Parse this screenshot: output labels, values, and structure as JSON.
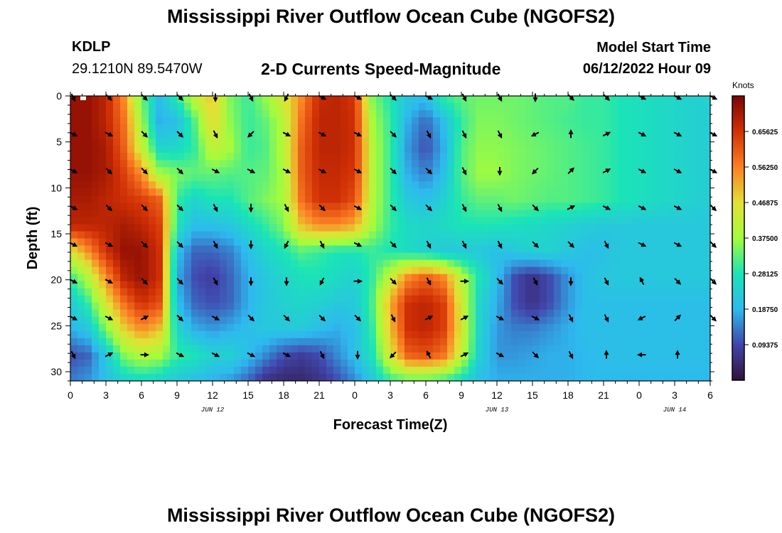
{
  "header": {
    "title": "Mississippi River Outflow Ocean Cube (NGOFS2)",
    "station": "KDLP",
    "coords": "29.1210N  89.5470W",
    "subtitle": "2-D Currents Speed-Magnitude",
    "model_start_label": "Model Start Time",
    "model_start_value": "06/12/2022 Hour 09"
  },
  "footer": {
    "title": "Mississippi River Outflow Ocean Cube (NGOFS2)"
  },
  "chart_data": {
    "type": "heatmap",
    "xlabel": "Forecast Time(Z)",
    "ylabel": "Depth (ft)",
    "x_tick_labels": [
      "0",
      "3",
      "6",
      "9",
      "12",
      "15",
      "18",
      "21",
      "0",
      "3",
      "6",
      "9",
      "12",
      "15",
      "18",
      "21",
      "0",
      "3",
      "6"
    ],
    "x_hours": [
      0,
      3,
      6,
      9,
      12,
      15,
      18,
      21,
      24,
      27,
      30,
      33,
      36,
      39,
      42,
      45,
      48,
      51,
      54
    ],
    "xlim": [
      0,
      54
    ],
    "date_labels": [
      {
        "text": "JUN 12",
        "hour": 12
      },
      {
        "text": "JUN 13",
        "hour": 36
      },
      {
        "text": "JUN 14",
        "hour": 51
      }
    ],
    "y_tick_labels": [
      "0",
      "5",
      "10",
      "15",
      "20",
      "25",
      "30"
    ],
    "y_ticks": [
      0,
      5,
      10,
      15,
      20,
      25,
      30
    ],
    "ylim": [
      0,
      31
    ],
    "colorbar": {
      "units": "Knots",
      "labels": [
        "0.65625",
        "0.56250",
        "0.46875",
        "0.37500",
        "0.28125",
        "0.18750",
        "0.09375"
      ],
      "range": [
        0,
        0.75
      ]
    },
    "arrow_depths": [
      0,
      4,
      8,
      12,
      16,
      20,
      24,
      28
    ],
    "speed_grid": [
      [
        0.72,
        0.72,
        0.68,
        0.55,
        0.34,
        0.2,
        0.3,
        0.42,
        0.5,
        0.35,
        0.3,
        0.37,
        0.45,
        0.55,
        0.67,
        0.68,
        0.65,
        0.35,
        0.28,
        0.22,
        0.2,
        0.3,
        0.33,
        0.34,
        0.34,
        0.34,
        0.33,
        0.32,
        0.32,
        0.3,
        0.3,
        0.28,
        0.27,
        0.26,
        0.25,
        0.24,
        0.24
      ],
      [
        0.72,
        0.72,
        0.68,
        0.58,
        0.38,
        0.18,
        0.2,
        0.32,
        0.48,
        0.36,
        0.3,
        0.33,
        0.4,
        0.58,
        0.68,
        0.68,
        0.66,
        0.38,
        0.3,
        0.18,
        0.12,
        0.2,
        0.3,
        0.35,
        0.35,
        0.34,
        0.33,
        0.32,
        0.31,
        0.3,
        0.3,
        0.28,
        0.27,
        0.26,
        0.25,
        0.24,
        0.23
      ],
      [
        0.72,
        0.72,
        0.7,
        0.6,
        0.42,
        0.25,
        0.25,
        0.3,
        0.42,
        0.38,
        0.3,
        0.32,
        0.4,
        0.6,
        0.68,
        0.68,
        0.66,
        0.4,
        0.3,
        0.16,
        0.1,
        0.18,
        0.32,
        0.36,
        0.36,
        0.35,
        0.34,
        0.33,
        0.32,
        0.31,
        0.3,
        0.28,
        0.27,
        0.26,
        0.25,
        0.24,
        0.23
      ],
      [
        0.72,
        0.72,
        0.7,
        0.64,
        0.55,
        0.38,
        0.35,
        0.33,
        0.33,
        0.32,
        0.32,
        0.33,
        0.38,
        0.6,
        0.67,
        0.67,
        0.65,
        0.4,
        0.3,
        0.18,
        0.14,
        0.2,
        0.32,
        0.37,
        0.37,
        0.35,
        0.34,
        0.33,
        0.32,
        0.31,
        0.3,
        0.28,
        0.27,
        0.26,
        0.25,
        0.24,
        0.23
      ],
      [
        0.7,
        0.7,
        0.68,
        0.66,
        0.64,
        0.6,
        0.3,
        0.25,
        0.28,
        0.28,
        0.32,
        0.35,
        0.38,
        0.58,
        0.66,
        0.66,
        0.62,
        0.4,
        0.3,
        0.22,
        0.2,
        0.24,
        0.3,
        0.33,
        0.33,
        0.34,
        0.33,
        0.32,
        0.32,
        0.31,
        0.3,
        0.28,
        0.27,
        0.26,
        0.25,
        0.24,
        0.23
      ],
      [
        0.68,
        0.68,
        0.68,
        0.7,
        0.68,
        0.64,
        0.28,
        0.2,
        0.2,
        0.22,
        0.26,
        0.3,
        0.35,
        0.5,
        0.55,
        0.55,
        0.52,
        0.38,
        0.3,
        0.26,
        0.25,
        0.26,
        0.28,
        0.28,
        0.28,
        0.27,
        0.26,
        0.25,
        0.24,
        0.23,
        0.22,
        0.22,
        0.22,
        0.22,
        0.22,
        0.22,
        0.22
      ],
      [
        0.45,
        0.55,
        0.66,
        0.72,
        0.72,
        0.66,
        0.2,
        0.12,
        0.12,
        0.14,
        0.2,
        0.25,
        0.28,
        0.32,
        0.3,
        0.28,
        0.28,
        0.3,
        0.28,
        0.26,
        0.24,
        0.22,
        0.22,
        0.22,
        0.2,
        0.22,
        0.24,
        0.24,
        0.22,
        0.2,
        0.2,
        0.22,
        0.22,
        0.22,
        0.22,
        0.22,
        0.22
      ],
      [
        0.3,
        0.4,
        0.55,
        0.68,
        0.72,
        0.66,
        0.18,
        0.1,
        0.08,
        0.12,
        0.18,
        0.22,
        0.25,
        0.27,
        0.28,
        0.26,
        0.24,
        0.3,
        0.42,
        0.55,
        0.6,
        0.55,
        0.4,
        0.28,
        0.2,
        0.1,
        0.06,
        0.1,
        0.16,
        0.2,
        0.22,
        0.22,
        0.22,
        0.22,
        0.22,
        0.22,
        0.22
      ],
      [
        0.22,
        0.3,
        0.45,
        0.58,
        0.66,
        0.62,
        0.2,
        0.12,
        0.1,
        0.12,
        0.18,
        0.22,
        0.24,
        0.25,
        0.24,
        0.22,
        0.22,
        0.32,
        0.52,
        0.66,
        0.68,
        0.64,
        0.44,
        0.25,
        0.18,
        0.1,
        0.06,
        0.1,
        0.16,
        0.2,
        0.2,
        0.2,
        0.2,
        0.2,
        0.2,
        0.2,
        0.2
      ],
      [
        0.18,
        0.22,
        0.35,
        0.48,
        0.55,
        0.5,
        0.25,
        0.18,
        0.16,
        0.18,
        0.2,
        0.22,
        0.22,
        0.22,
        0.2,
        0.18,
        0.2,
        0.3,
        0.5,
        0.66,
        0.68,
        0.64,
        0.45,
        0.25,
        0.16,
        0.14,
        0.14,
        0.16,
        0.18,
        0.2,
        0.2,
        0.2,
        0.2,
        0.2,
        0.2,
        0.2,
        0.2
      ],
      [
        0.1,
        0.12,
        0.22,
        0.35,
        0.4,
        0.38,
        0.3,
        0.28,
        0.24,
        0.24,
        0.2,
        0.15,
        0.1,
        0.08,
        0.1,
        0.15,
        0.2,
        0.28,
        0.45,
        0.6,
        0.62,
        0.58,
        0.42,
        0.24,
        0.16,
        0.16,
        0.17,
        0.18,
        0.18,
        0.19,
        0.2,
        0.2,
        0.2,
        0.2,
        0.2,
        0.2,
        0.2
      ],
      [
        0.14,
        0.16,
        0.2,
        0.24,
        0.26,
        0.24,
        0.22,
        0.2,
        0.18,
        0.16,
        0.12,
        0.06,
        0.04,
        0.04,
        0.06,
        0.1,
        0.15,
        0.22,
        0.3,
        0.32,
        0.32,
        0.3,
        0.26,
        0.2,
        0.18,
        0.18,
        0.18,
        0.18,
        0.18,
        0.19,
        0.19,
        0.19,
        0.19,
        0.19,
        0.19,
        0.19,
        0.19
      ]
    ],
    "arrows": [
      [
        [
          0.45,
          0.89
        ],
        [
          0.71,
          0.71
        ],
        [
          0.71,
          0.71
        ],
        [
          0.71,
          0.71
        ],
        [
          0,
          1
        ],
        [
          0.45,
          0.89
        ],
        [
          -0.45,
          0.89
        ],
        [
          0.89,
          0.45
        ],
        [
          0.89,
          0.45
        ],
        [
          0.71,
          0.71
        ],
        [
          0.89,
          0.45
        ],
        [
          0.45,
          0.89
        ],
        [
          0.45,
          0.89
        ],
        [
          0,
          1
        ],
        [
          0.71,
          0.71
        ],
        [
          0.71,
          0.71
        ],
        [
          0.89,
          0.45
        ],
        [
          0.89,
          0.45
        ],
        [
          0.89,
          0.45
        ]
      ],
      [
        [
          0.89,
          0.45
        ],
        [
          0.89,
          0.45
        ],
        [
          0.71,
          0.71
        ],
        [
          0.71,
          0.71
        ],
        [
          0.45,
          0.89
        ],
        [
          -0.71,
          0.71
        ],
        [
          0.89,
          0.45
        ],
        [
          0.89,
          0.45
        ],
        [
          0.89,
          0.45
        ],
        [
          0.71,
          0.71
        ],
        [
          0.45,
          0.89
        ],
        [
          0.45,
          0.89
        ],
        [
          0.45,
          0.89
        ],
        [
          -0.89,
          0.45
        ],
        [
          0,
          -1
        ],
        [
          0.89,
          -0.45
        ],
        [
          0.89,
          0.45
        ],
        [
          0.89,
          0.45
        ],
        [
          0.89,
          0.45
        ]
      ],
      [
        [
          0.89,
          0.45
        ],
        [
          0.71,
          0.71
        ],
        [
          0.71,
          0.71
        ],
        [
          0.71,
          0.71
        ],
        [
          0.89,
          0.45
        ],
        [
          0.89,
          0.45
        ],
        [
          0.89,
          0.45
        ],
        [
          0.89,
          0.45
        ],
        [
          0.89,
          0.45
        ],
        [
          0.71,
          0.71
        ],
        [
          0.71,
          0.71
        ],
        [
          0.45,
          0.89
        ],
        [
          0,
          1
        ],
        [
          -0.71,
          0.71
        ],
        [
          0.71,
          -0.71
        ],
        [
          0.89,
          -0.45
        ],
        [
          0.89,
          0.45
        ],
        [
          0.89,
          0.45
        ],
        [
          0.89,
          0.45
        ]
      ],
      [
        [
          0.89,
          0.45
        ],
        [
          0.71,
          0.71
        ],
        [
          0.71,
          0.71
        ],
        [
          0.71,
          0.71
        ],
        [
          0.45,
          0.89
        ],
        [
          0,
          1
        ],
        [
          0.45,
          0.89
        ],
        [
          0.71,
          0.71
        ],
        [
          0.89,
          0.45
        ],
        [
          0.71,
          0.71
        ],
        [
          0.71,
          0.71
        ],
        [
          0.45,
          0.89
        ],
        [
          0.45,
          0.89
        ],
        [
          0.71,
          0.71
        ],
        [
          0.89,
          -0.45
        ],
        [
          0.89,
          0.45
        ],
        [
          0.89,
          0.45
        ],
        [
          0.89,
          0.45
        ],
        [
          0.71,
          0.71
        ]
      ],
      [
        [
          0.89,
          0.45
        ],
        [
          0.89,
          0.45
        ],
        [
          0.71,
          0.71
        ],
        [
          0.71,
          0.71
        ],
        [
          0.45,
          0.89
        ],
        [
          0,
          1
        ],
        [
          -0.45,
          0.89
        ],
        [
          0.45,
          0.89
        ],
        [
          0.89,
          0.45
        ],
        [
          0.71,
          0.71
        ],
        [
          0.45,
          0.89
        ],
        [
          0.45,
          0.89
        ],
        [
          0.45,
          0.89
        ],
        [
          0.71,
          0.71
        ],
        [
          0.71,
          0.71
        ],
        [
          0.45,
          0.89
        ],
        [
          0.89,
          0.45
        ],
        [
          0.89,
          0.45
        ],
        [
          0.71,
          0.71
        ]
      ],
      [
        [
          0.89,
          0.45
        ],
        [
          0.89,
          0.45
        ],
        [
          0.71,
          0.71
        ],
        [
          0.71,
          0.71
        ],
        [
          0.45,
          0.89
        ],
        [
          0,
          1
        ],
        [
          0,
          1
        ],
        [
          -0.45,
          0.89
        ],
        [
          1,
          0
        ],
        [
          0.71,
          0.71
        ],
        [
          0.45,
          0.89
        ],
        [
          1,
          0
        ],
        [
          0.71,
          0.71
        ],
        [
          0.45,
          0.89
        ],
        [
          0,
          1
        ],
        [
          0.45,
          0.89
        ],
        [
          -0.45,
          -0.89
        ],
        [
          0.71,
          0.71
        ],
        [
          0.71,
          0.71
        ]
      ],
      [
        [
          0.89,
          0.45
        ],
        [
          0.89,
          0.45
        ],
        [
          0.89,
          -0.45
        ],
        [
          0.71,
          0.71
        ],
        [
          0.89,
          0.45
        ],
        [
          0.71,
          0.71
        ],
        [
          0.71,
          0.71
        ],
        [
          0.71,
          0.71
        ],
        [
          0.71,
          0.71
        ],
        [
          0.45,
          0.89
        ],
        [
          0.89,
          -0.45
        ],
        [
          0.89,
          -0.45
        ],
        [
          0.89,
          0.45
        ],
        [
          0.89,
          0.45
        ],
        [
          0.45,
          0.89
        ],
        [
          0.45,
          0.89
        ],
        [
          -0.89,
          0.45
        ],
        [
          0.71,
          -0.71
        ],
        [
          0.71,
          0.71
        ]
      ],
      [
        [
          0.45,
          0.89
        ],
        [
          0.89,
          -0.45
        ],
        [
          1,
          0
        ],
        [
          0.89,
          0.45
        ],
        [
          0.89,
          0.45
        ],
        [
          0.89,
          0.45
        ],
        [
          0.89,
          0.45
        ],
        [
          0.45,
          0.89
        ],
        [
          0,
          1
        ],
        [
          -0.71,
          0.71
        ],
        [
          -0.45,
          -0.89
        ],
        [
          0.89,
          -0.45
        ],
        [
          0.89,
          0.45
        ],
        [
          0.71,
          0.71
        ],
        [
          0.45,
          0.89
        ],
        [
          0,
          -1
        ],
        [
          -1,
          0
        ],
        [
          0,
          -1
        ],
        [
          0,
          0
        ]
      ]
    ]
  }
}
